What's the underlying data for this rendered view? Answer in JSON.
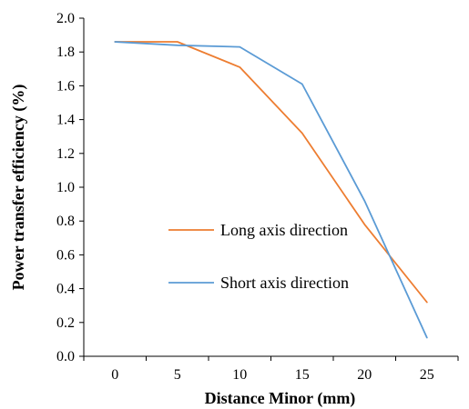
{
  "chart_data": {
    "type": "line",
    "xlabel": "Distance Minor (mm)",
    "ylabel": "Power transfer efficiency (%)",
    "categories": [
      "0",
      "5",
      "10",
      "15",
      "20",
      "25"
    ],
    "x": [
      0,
      5,
      10,
      15,
      20,
      25
    ],
    "xlim": [
      0,
      25
    ],
    "ylim": [
      0.0,
      2.0
    ],
    "yticks": [
      "0.0",
      "0.2",
      "0.4",
      "0.6",
      "0.8",
      "1.0",
      "1.2",
      "1.4",
      "1.6",
      "1.8",
      "2.0"
    ],
    "grid": false,
    "legend_position": "center-left",
    "series": [
      {
        "name": "Long axis direction",
        "color": "#ED7D31",
        "values": [
          1.86,
          1.86,
          1.71,
          1.32,
          0.78,
          0.32
        ]
      },
      {
        "name": "Short axis direction",
        "color": "#5B9BD5",
        "values": [
          1.86,
          1.84,
          1.83,
          1.61,
          0.92,
          0.11
        ]
      }
    ]
  }
}
